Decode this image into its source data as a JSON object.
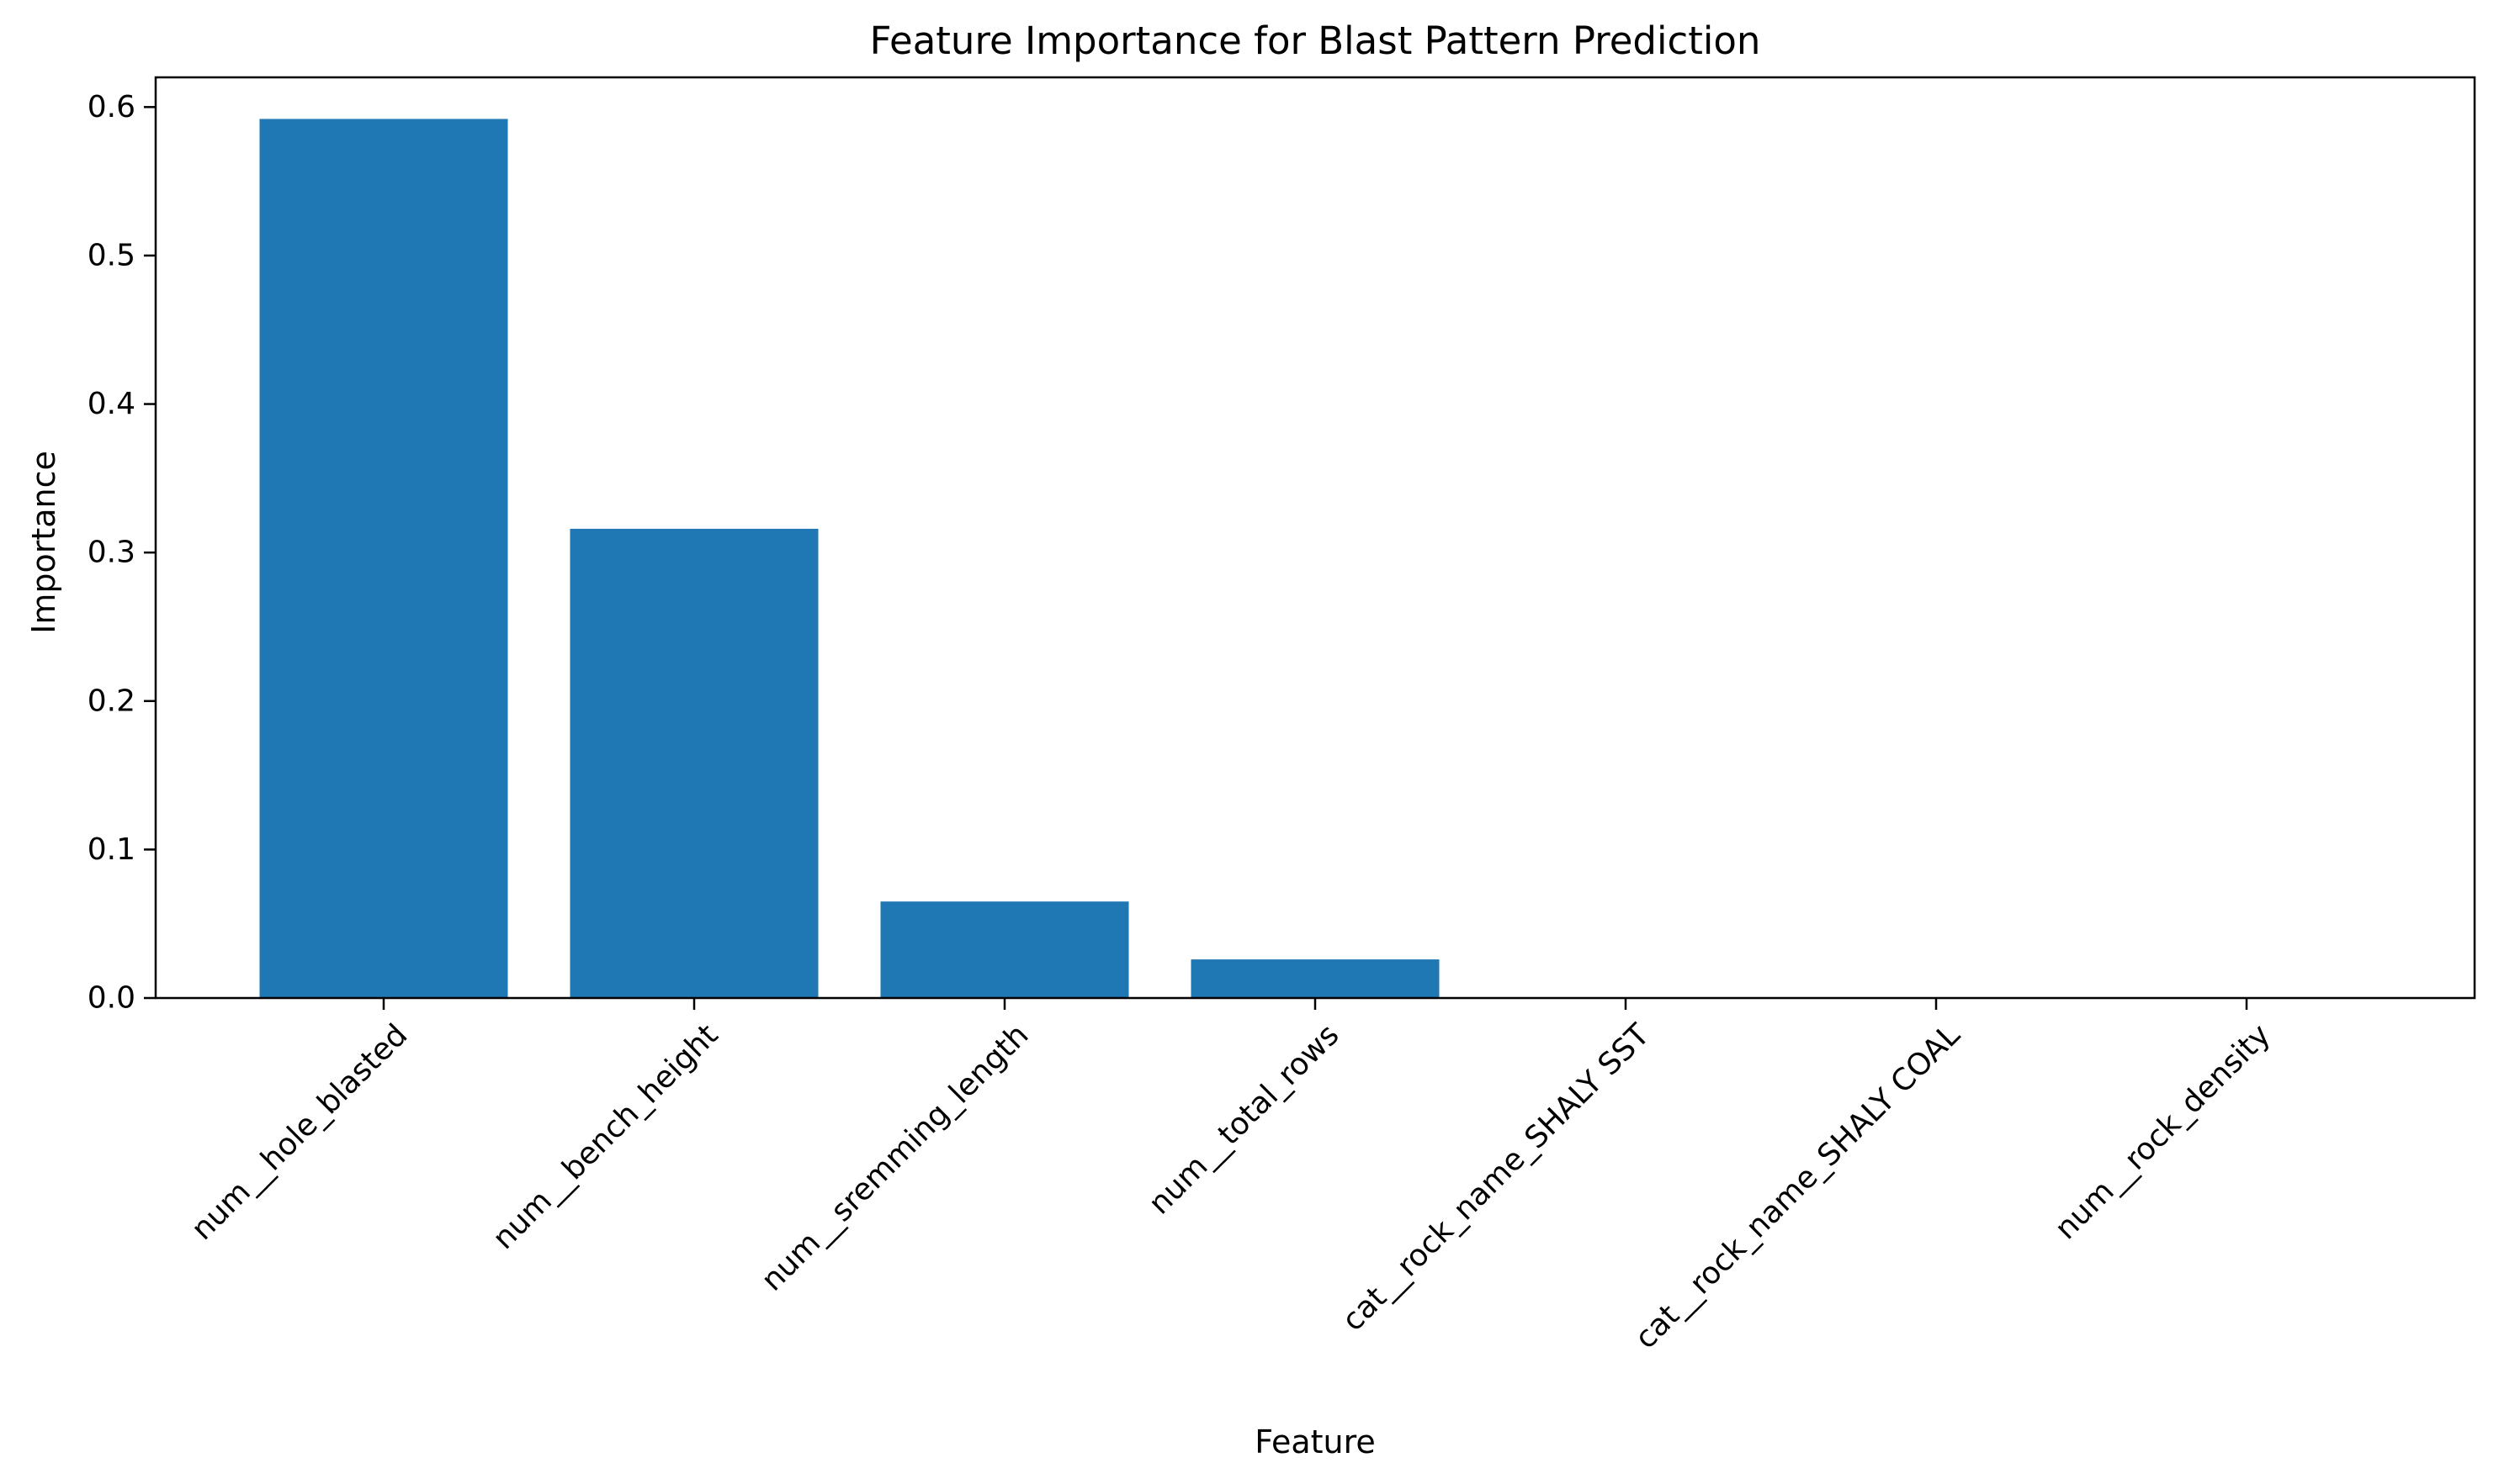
{
  "chart_data": {
    "type": "bar",
    "title": "Feature Importance for Blast Pattern Prediction",
    "xlabel": "Feature",
    "ylabel": "Importance",
    "categories": [
      "num__hole_blasted",
      "num__bench_height",
      "num__sremming_length",
      "num__total_rows",
      "cat__rock_name_SHALY SST",
      "cat__rock_name_SHALY COAL",
      "num__rock_density"
    ],
    "values": [
      0.592,
      0.316,
      0.065,
      0.026,
      0.0,
      0.0,
      0.0
    ],
    "ylim": [
      0,
      0.62
    ],
    "yticks": [
      0.0,
      0.1,
      0.2,
      0.3,
      0.4,
      0.5,
      0.6
    ],
    "ytick_labels": [
      "0.0",
      "0.1",
      "0.2",
      "0.3",
      "0.4",
      "0.5",
      "0.6"
    ],
    "bar_color": "#1f77b4",
    "grid": false,
    "legend": "none"
  }
}
